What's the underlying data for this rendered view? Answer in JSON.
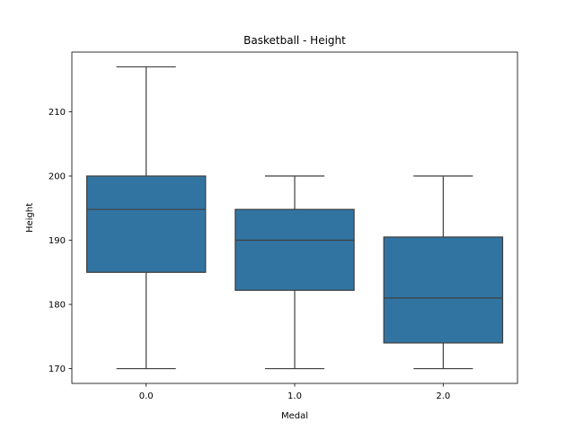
{
  "chart_data": {
    "type": "boxplot",
    "title": "Basketball - Height",
    "xlabel": "Medal",
    "ylabel": "Height",
    "ylim": [
      167.7,
      219.3
    ],
    "yticks": [
      170,
      180,
      190,
      200,
      210
    ],
    "categories": [
      "0.0",
      "1.0",
      "2.0"
    ],
    "boxes": [
      {
        "category": "0.0",
        "whislo": 170,
        "q1": 185,
        "med": 194.8,
        "q3": 200,
        "whishi": 217
      },
      {
        "category": "1.0",
        "whislo": 170,
        "q1": 182.2,
        "med": 190,
        "q3": 194.8,
        "whishi": 200
      },
      {
        "category": "2.0",
        "whislo": 170,
        "q1": 174,
        "med": 181,
        "q3": 190.5,
        "whishi": 200
      }
    ],
    "box_color": "#3274a1",
    "line_color": "#3f3f3f",
    "grid": false,
    "legend": "none"
  }
}
